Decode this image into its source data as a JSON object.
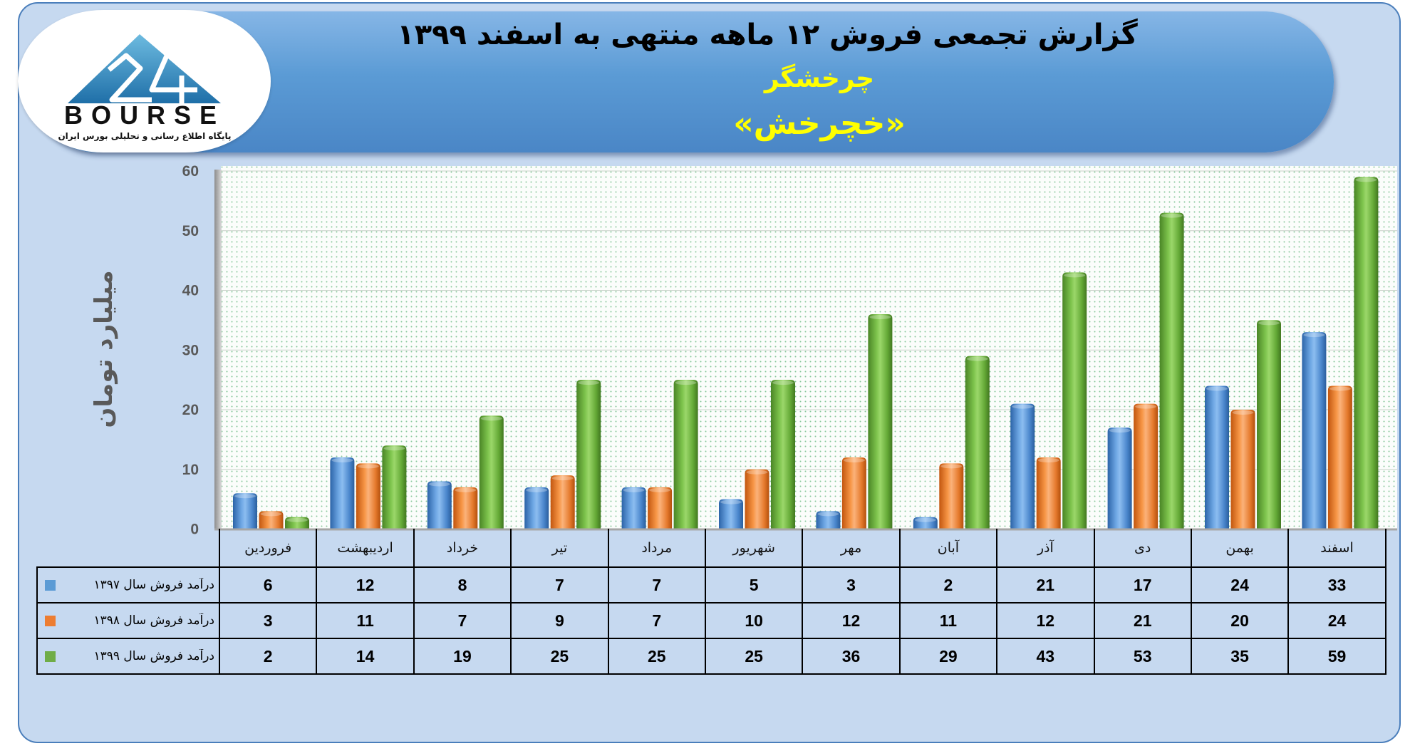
{
  "header": {
    "title": "گزارش تجمعی فروش ۱۲ ماهه منتهی به اسفند ۱۳۹۹",
    "company": "چرخشگر",
    "symbol": "«خچرخش»"
  },
  "logo": {
    "wordmark": "BOURSE",
    "tagline": "پایگاه اطلاع رسانی و تحلیلی بورس ایران"
  },
  "chart_data": {
    "type": "bar",
    "title": "گزارش تجمعی فروش ۱۲ ماهه منتهی به اسفند ۱۳۹۹",
    "xlabel": "",
    "ylabel": "میلیارد تومان",
    "ylim": [
      0,
      60
    ],
    "yticks": [
      0,
      10,
      20,
      30,
      40,
      50,
      60
    ],
    "grid": true,
    "legend": "data-table-left",
    "categories": [
      "فروردین",
      "اردیبهشت",
      "خرداد",
      "تیر",
      "مرداد",
      "شهریور",
      "مهر",
      "آبان",
      "آذر",
      "دی",
      "بهمن",
      "اسفند"
    ],
    "series": [
      {
        "name": "درآمد فروش سال ۱۳۹۷",
        "color": "#5b9bd5",
        "values": [
          6,
          12,
          8,
          7,
          7,
          5,
          3,
          2,
          21,
          17,
          24,
          33
        ]
      },
      {
        "name": "درآمد فروش سال ۱۳۹۸",
        "color": "#ed7d31",
        "values": [
          3,
          11,
          7,
          9,
          7,
          10,
          12,
          11,
          12,
          21,
          20,
          24
        ]
      },
      {
        "name": "درآمد فروش سال ۱۳۹۹",
        "color": "#70ad47",
        "values": [
          2,
          14,
          19,
          25,
          25,
          25,
          36,
          29,
          43,
          53,
          35,
          59
        ]
      }
    ]
  }
}
